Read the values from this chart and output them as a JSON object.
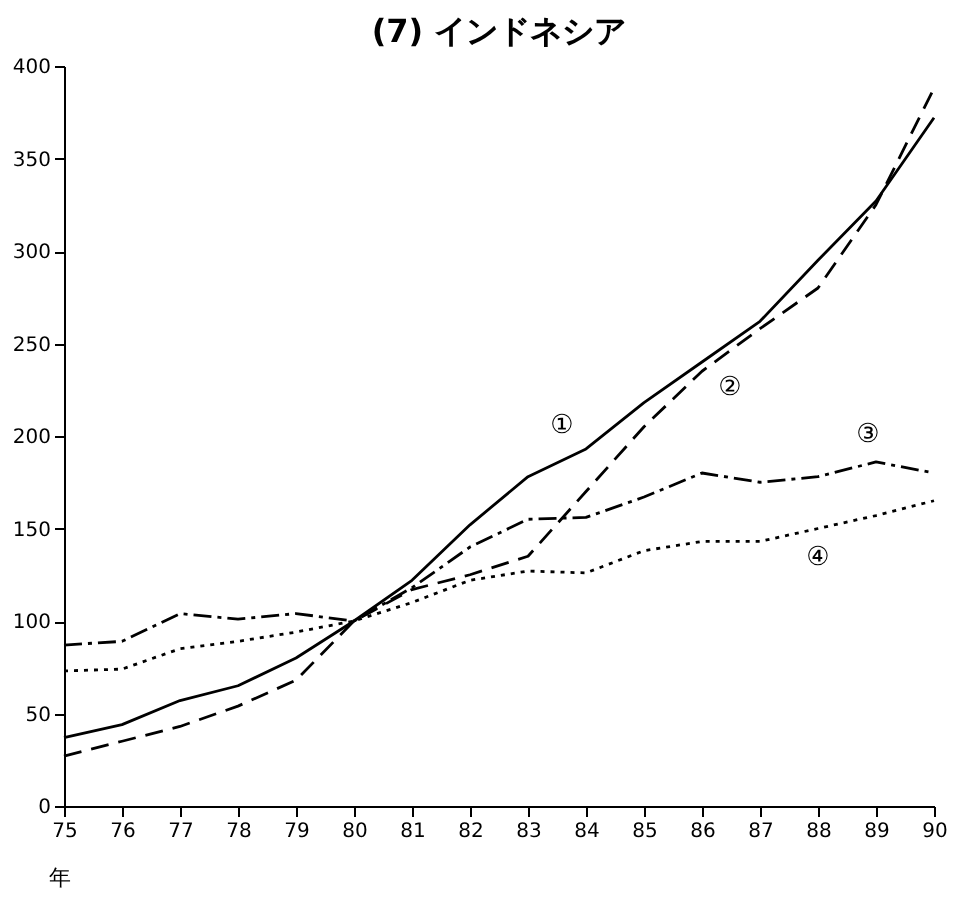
{
  "chart_data": {
    "type": "line",
    "title": "(7)  インドネシア",
    "xlabel": "年",
    "x": [
      75,
      76,
      77,
      78,
      79,
      80,
      81,
      82,
      83,
      84,
      85,
      86,
      87,
      88,
      89,
      90
    ],
    "xlim": [
      75,
      90
    ],
    "xticks": [
      75,
      76,
      77,
      78,
      79,
      80,
      81,
      82,
      83,
      84,
      85,
      86,
      87,
      88,
      89,
      90
    ],
    "ylim": [
      0,
      400
    ],
    "yticks": [
      0,
      50,
      100,
      150,
      200,
      250,
      300,
      350,
      400
    ],
    "grid": false,
    "legend": false,
    "marker": "none",
    "series": [
      {
        "name": "①",
        "color": "#000000",
        "line_style": "solid",
        "values": [
          37,
          44,
          57,
          65,
          80,
          100,
          122,
          152,
          178,
          193,
          218,
          240,
          262,
          295,
          327,
          372
        ]
      },
      {
        "name": "②",
        "color": "#000000",
        "line_style": "dashed",
        "values": [
          27,
          35,
          43,
          54,
          68,
          100,
          117,
          125,
          135,
          170,
          205,
          235,
          258,
          280,
          325,
          388
        ]
      },
      {
        "name": "③",
        "color": "#000000",
        "line_style": "dashdot",
        "values": [
          87,
          89,
          104,
          101,
          104,
          100,
          118,
          140,
          155,
          156,
          167,
          180,
          175,
          178,
          186,
          180
        ]
      },
      {
        "name": "④",
        "color": "#000000",
        "line_style": "dotted",
        "values": [
          73,
          74,
          85,
          89,
          94,
          100,
          110,
          122,
          127,
          126,
          138,
          143,
          143,
          150,
          157,
          165
        ]
      }
    ]
  }
}
